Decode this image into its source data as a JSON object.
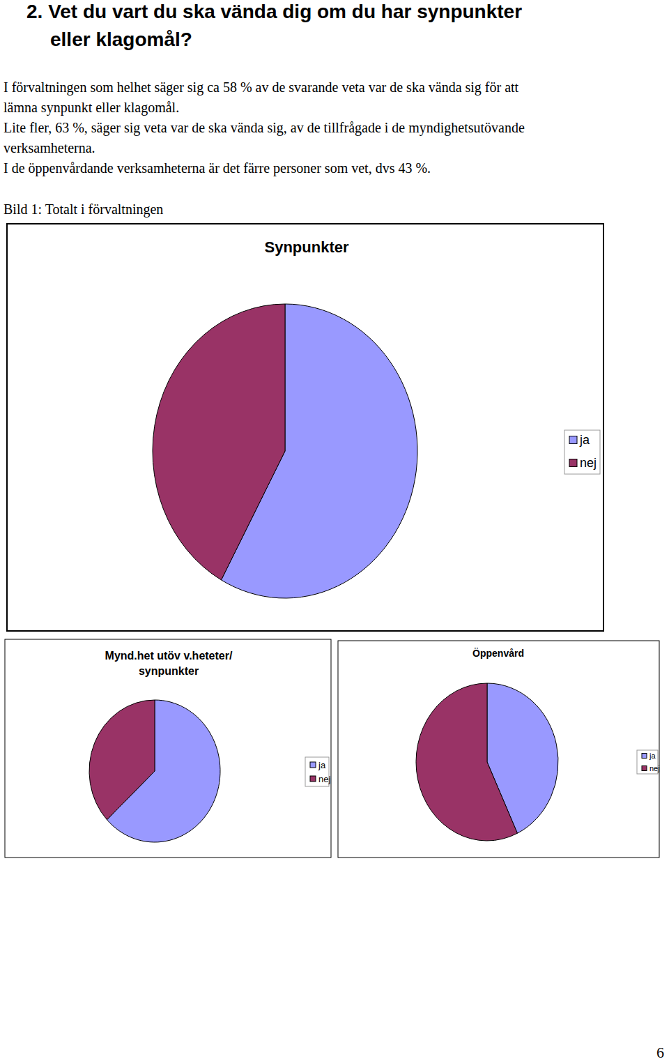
{
  "heading": [
    "2. Vet du vart du ska vända dig om du har synpunkter",
    "eller klagomål?"
  ],
  "paragraphs": [
    [
      "I förvaltningen som helhet säger sig ca 58 % av de svarande veta var de ska vända sig för att",
      "lämna synpunkt eller klagomål."
    ],
    [
      "Lite fler, 63 %, säger sig veta var de ska vända sig, av de tillfrågade i de myndighetsutövande",
      "verksamheterna."
    ],
    [
      "I de öppenvårdande verksamheterna är det färre personer som vet, dvs 43 %."
    ]
  ],
  "caption": "Bild 1: Totalt i förvaltningen",
  "chart_data": [
    {
      "type": "pie",
      "title": "Synpunkter",
      "categories": [
        "ja",
        "nej"
      ],
      "values": [
        58,
        42
      ],
      "colors": [
        "#9999ff",
        "#993366"
      ],
      "legend": "right"
    },
    {
      "type": "pie",
      "title": "Mynd.het utöv v.heteter/\nsynpunkter",
      "categories": [
        "ja",
        "nej"
      ],
      "values": [
        63,
        37
      ],
      "colors": [
        "#9999ff",
        "#993366"
      ],
      "legend": "right"
    },
    {
      "type": "pie",
      "title": "Öppenvård",
      "categories": [
        "ja",
        "nej"
      ],
      "values": [
        43,
        57
      ],
      "colors": [
        "#9999ff",
        "#993366"
      ],
      "legend": "right"
    }
  ],
  "page_number": "6"
}
